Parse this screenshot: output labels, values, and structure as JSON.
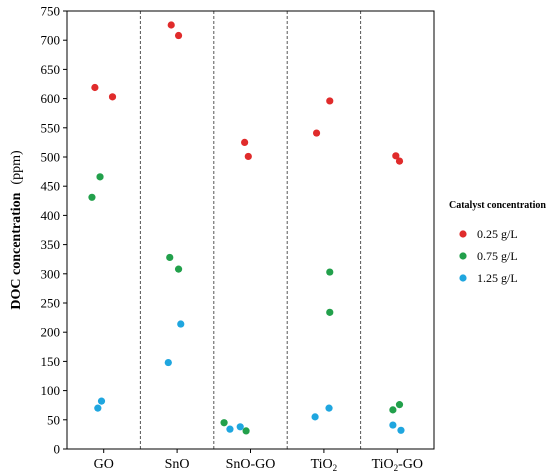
{
  "chart_data": {
    "type": "scatter",
    "ylabel": "DOC concentration",
    "ylabel_unit": "(ppm)",
    "ylim": [
      0,
      750
    ],
    "yticks": [
      0,
      50,
      100,
      150,
      200,
      250,
      300,
      350,
      400,
      450,
      500,
      550,
      600,
      650,
      700,
      750
    ],
    "categories": [
      {
        "base": "GO",
        "sub": "",
        "tail": ""
      },
      {
        "base": "SnO",
        "sub": "",
        "tail": ""
      },
      {
        "base": "SnO-GO",
        "sub": "",
        "tail": ""
      },
      {
        "base": "TiO",
        "sub": "2",
        "tail": ""
      },
      {
        "base": "TiO",
        "sub": "2",
        "tail": "-GO"
      }
    ],
    "grid": "vertical dashed separators between categories",
    "legend": {
      "title": "Catalyst concentration",
      "placement": "right",
      "entries": [
        "0.25 g/L",
        "0.75 g/L",
        "1.25 g/L"
      ]
    },
    "series": [
      {
        "name": "0.25 g/L",
        "color": "#e02b2b",
        "points": [
          {
            "cat": 0,
            "offset": -0.12,
            "y": 619
          },
          {
            "cat": 0,
            "offset": 0.12,
            "y": 603
          },
          {
            "cat": 1,
            "offset": -0.08,
            "y": 726
          },
          {
            "cat": 1,
            "offset": 0.02,
            "y": 708
          },
          {
            "cat": 2,
            "offset": -0.08,
            "y": 525
          },
          {
            "cat": 2,
            "offset": -0.03,
            "y": 501
          },
          {
            "cat": 3,
            "offset": -0.1,
            "y": 541
          },
          {
            "cat": 3,
            "offset": 0.08,
            "y": 596
          },
          {
            "cat": 4,
            "offset": -0.02,
            "y": 502
          },
          {
            "cat": 4,
            "offset": 0.03,
            "y": 493
          }
        ]
      },
      {
        "name": "0.75 g/L",
        "color": "#22a04b",
        "points": [
          {
            "cat": 0,
            "offset": -0.05,
            "y": 466
          },
          {
            "cat": 0,
            "offset": -0.16,
            "y": 431
          },
          {
            "cat": 1,
            "offset": -0.1,
            "y": 328
          },
          {
            "cat": 1,
            "offset": 0.02,
            "y": 308
          },
          {
            "cat": 2,
            "offset": -0.36,
            "y": 45
          },
          {
            "cat": 2,
            "offset": -0.06,
            "y": 31
          },
          {
            "cat": 3,
            "offset": 0.08,
            "y": 303
          },
          {
            "cat": 3,
            "offset": 0.08,
            "y": 234
          },
          {
            "cat": 4,
            "offset": -0.06,
            "y": 67
          },
          {
            "cat": 4,
            "offset": 0.03,
            "y": 76
          }
        ]
      },
      {
        "name": "1.25 g/L",
        "color": "#1fa6df",
        "points": [
          {
            "cat": 0,
            "offset": -0.08,
            "y": 70
          },
          {
            "cat": 0,
            "offset": -0.03,
            "y": 82
          },
          {
            "cat": 1,
            "offset": -0.12,
            "y": 148
          },
          {
            "cat": 1,
            "offset": 0.05,
            "y": 214
          },
          {
            "cat": 2,
            "offset": -0.28,
            "y": 34
          },
          {
            "cat": 2,
            "offset": -0.14,
            "y": 38
          },
          {
            "cat": 3,
            "offset": -0.12,
            "y": 55
          },
          {
            "cat": 3,
            "offset": 0.07,
            "y": 70
          },
          {
            "cat": 4,
            "offset": -0.06,
            "y": 41
          },
          {
            "cat": 4,
            "offset": 0.05,
            "y": 32
          }
        ]
      }
    ]
  }
}
